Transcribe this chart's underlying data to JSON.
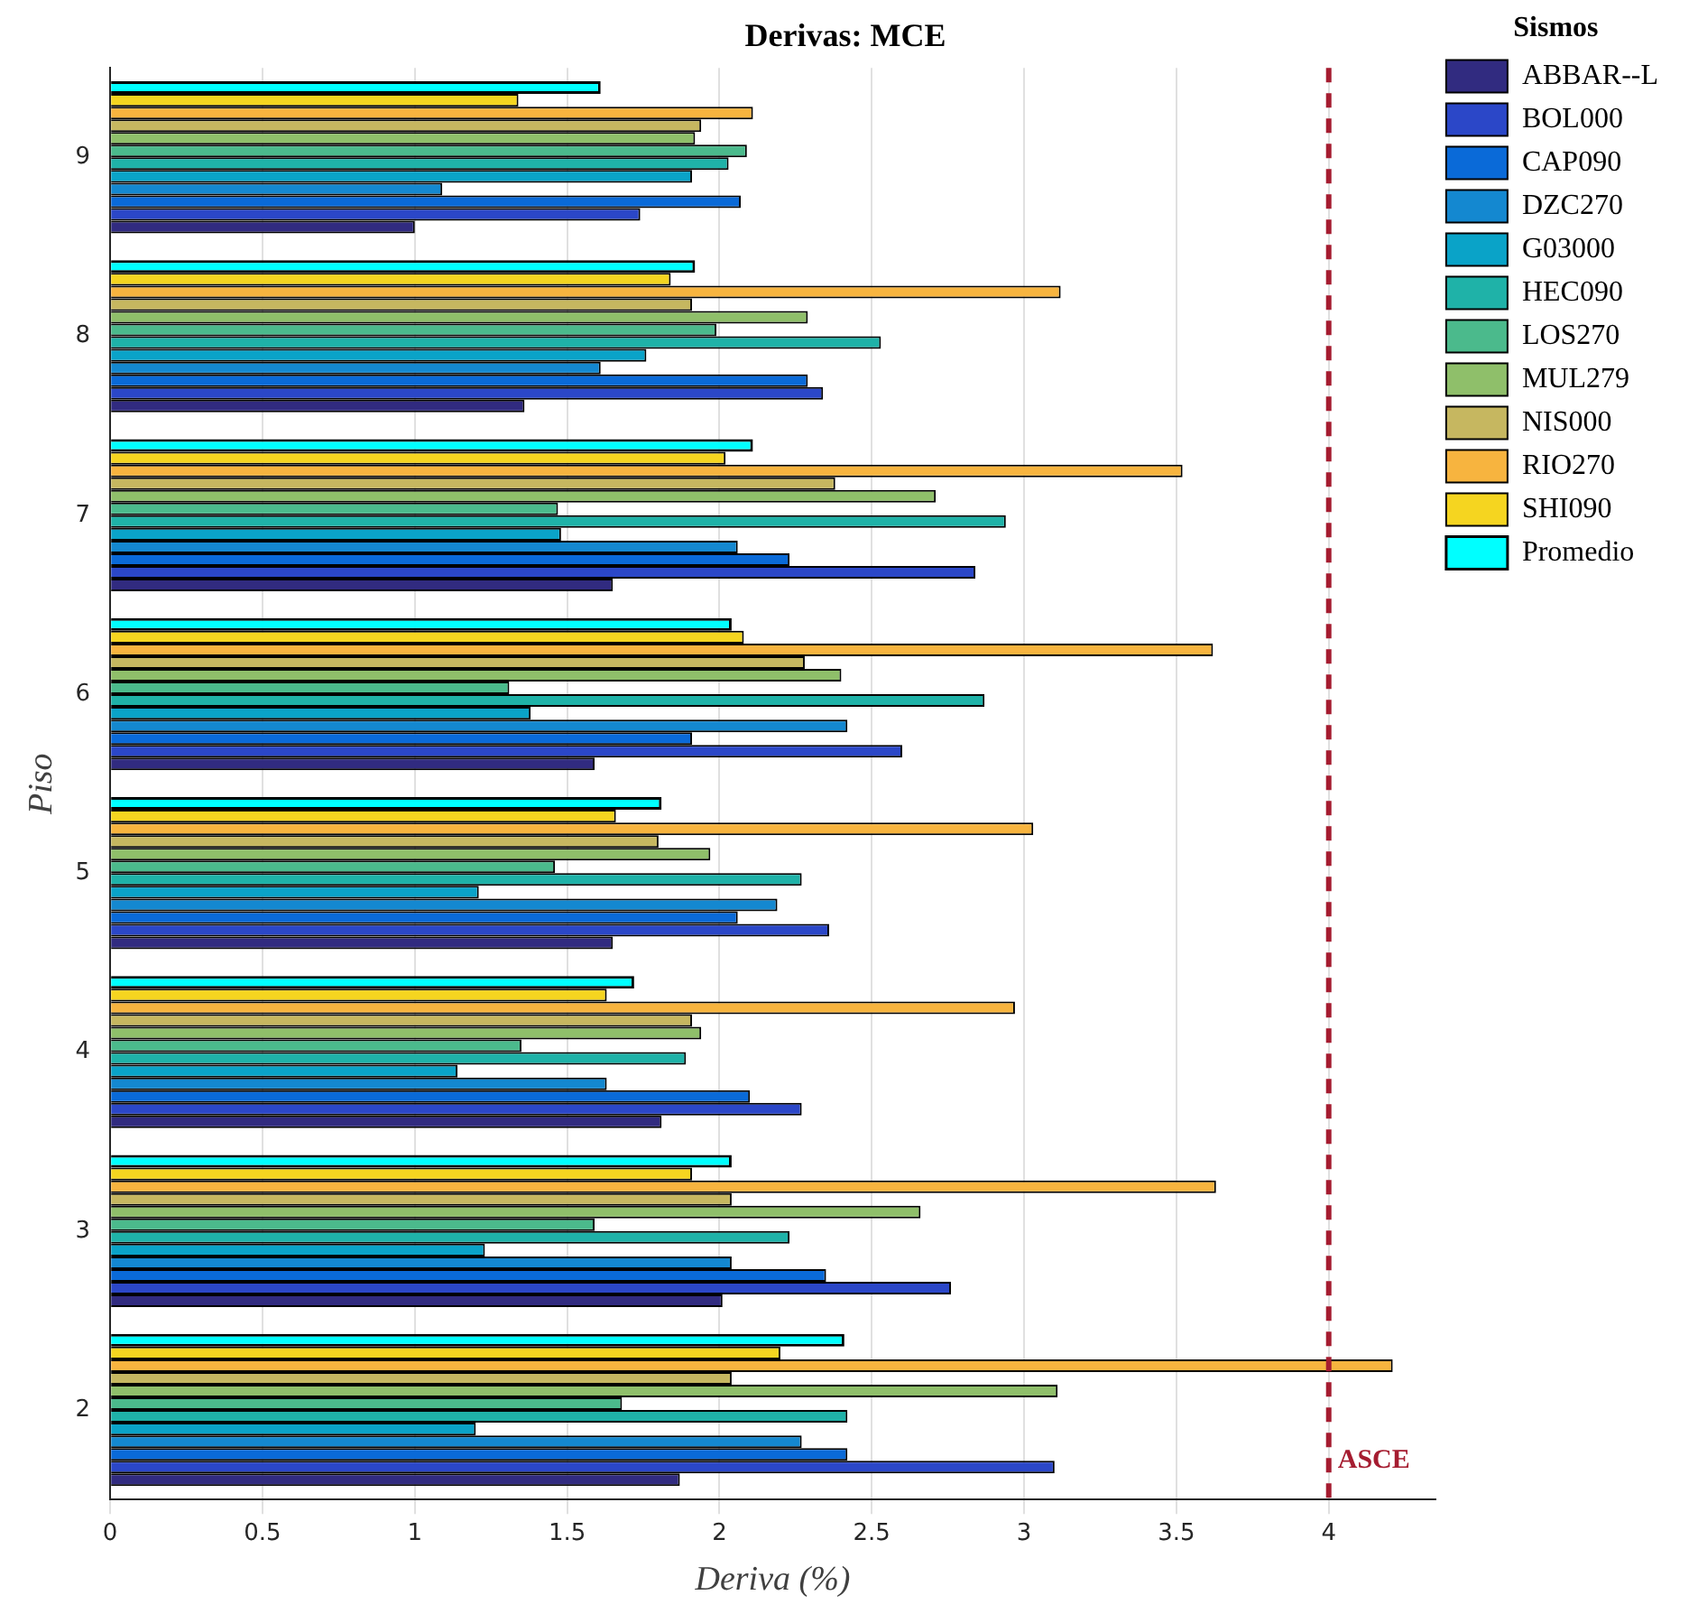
{
  "chart_data": {
    "type": "bar",
    "orientation": "horizontal",
    "title": "Derivas: MCE",
    "xlabel": "Deriva (%)",
    "ylabel": "Piso",
    "legend_title": "Sismos",
    "legend": "top right",
    "grid": "x",
    "categories": [
      "9",
      "8",
      "7",
      "6",
      "5",
      "4",
      "3",
      "2"
    ],
    "xlim": [
      0,
      4.35
    ],
    "xticks": [
      0,
      0.5,
      1,
      1.5,
      2,
      2.5,
      3,
      3.5,
      4
    ],
    "ref_lines": [
      {
        "axis": "x",
        "value": 4,
        "label": "ASCE",
        "color": "#a51c30",
        "line_style": "dashed"
      }
    ],
    "series": [
      {
        "name": "ABBAR--L",
        "color": "#312b80",
        "values": [
          1.0,
          1.36,
          1.65,
          1.59,
          1.65,
          1.81,
          2.01,
          1.87
        ]
      },
      {
        "name": "BOL000",
        "color": "#2b47c8",
        "values": [
          1.74,
          2.34,
          2.84,
          2.6,
          2.36,
          2.27,
          2.76,
          3.1
        ]
      },
      {
        "name": "CAP090",
        "color": "#0a6ad8",
        "values": [
          2.07,
          2.29,
          2.23,
          1.91,
          2.06,
          2.1,
          2.35,
          2.42
        ]
      },
      {
        "name": "DZC270",
        "color": "#1488d0",
        "values": [
          1.09,
          1.61,
          2.06,
          2.42,
          2.19,
          1.63,
          2.04,
          2.27
        ]
      },
      {
        "name": "G03000",
        "color": "#0aa3c8",
        "values": [
          1.91,
          1.76,
          1.48,
          1.38,
          1.21,
          1.14,
          1.23,
          1.2
        ]
      },
      {
        "name": "HEC090",
        "color": "#1fb2a8",
        "values": [
          2.03,
          2.53,
          2.94,
          2.87,
          2.27,
          1.89,
          2.23,
          2.42
        ]
      },
      {
        "name": "LOS270",
        "color": "#4bba8c",
        "values": [
          2.09,
          1.99,
          1.47,
          1.31,
          1.46,
          1.35,
          1.59,
          1.68
        ]
      },
      {
        "name": "MUL279",
        "color": "#8fbf6a",
        "values": [
          1.92,
          2.29,
          2.71,
          2.4,
          1.97,
          1.94,
          2.66,
          3.11
        ]
      },
      {
        "name": "NIS000",
        "color": "#c6b760",
        "values": [
          1.94,
          1.91,
          2.38,
          2.28,
          1.8,
          1.91,
          2.04,
          2.04
        ]
      },
      {
        "name": "RIO270",
        "color": "#f7b43f",
        "values": [
          2.11,
          3.12,
          3.52,
          3.62,
          3.03,
          2.97,
          3.63,
          4.21
        ]
      },
      {
        "name": "SHI090",
        "color": "#f5d520",
        "values": [
          1.34,
          1.84,
          2.02,
          2.08,
          1.66,
          1.63,
          1.91,
          2.2
        ]
      },
      {
        "name": "Promedio",
        "color": "#00ffff",
        "values": [
          1.61,
          1.92,
          2.11,
          2.04,
          1.81,
          1.72,
          2.04,
          2.41
        ]
      }
    ]
  }
}
